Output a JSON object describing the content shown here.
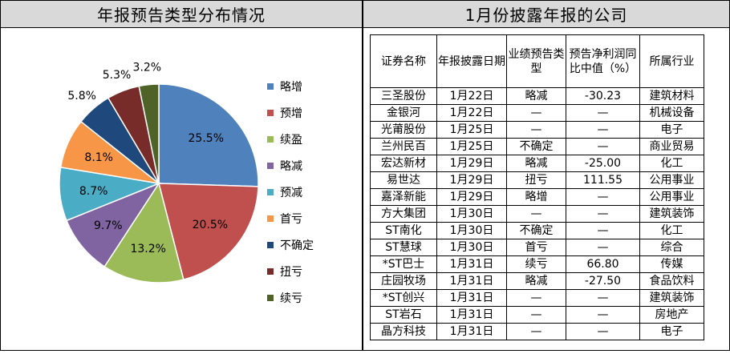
{
  "left_panel": {
    "title": "年报预告类型分布情况"
  },
  "right_panel": {
    "title": "1月份披露年报的公司"
  },
  "chart_data": {
    "type": "pie",
    "title": "年报预告类型分布情况",
    "slices": [
      {
        "label": "略增",
        "value": 25.5,
        "display": "25.5%",
        "color": "#4f81bd"
      },
      {
        "label": "预增",
        "value": 20.5,
        "display": "20.5%",
        "color": "#c0504d"
      },
      {
        "label": "续盈",
        "value": 13.2,
        "display": "13.2%",
        "color": "#9bbb59"
      },
      {
        "label": "略减",
        "value": 9.7,
        "display": "9.7%",
        "color": "#8064a2"
      },
      {
        "label": "预减",
        "value": 8.7,
        "display": "8.7%",
        "color": "#4bacc6"
      },
      {
        "label": "首亏",
        "value": 8.1,
        "display": "8.1%",
        "color": "#f79646"
      },
      {
        "label": "不确定",
        "value": 5.8,
        "display": "5.8%",
        "color": "#1f497d"
      },
      {
        "label": "扭亏",
        "value": 5.3,
        "display": "5.3%",
        "color": "#772c2a"
      },
      {
        "label": "续亏",
        "value": 3.2,
        "display": "3.2%",
        "color": "#4f6228"
      }
    ],
    "legend_position": "right"
  },
  "table": {
    "headers": [
      "证券名称",
      "年报披露日期",
      "业绩预告类型",
      "预告净利润同比中值（%）",
      "所属行业"
    ],
    "rows": [
      [
        "三圣股份",
        "1月22日",
        "略减",
        "-30.23",
        "建筑材料"
      ],
      [
        "金银河",
        "1月22日",
        "—",
        "—",
        "机械设备"
      ],
      [
        "光莆股份",
        "1月25日",
        "—",
        "—",
        "电子"
      ],
      [
        "兰州民百",
        "1月25日",
        "不确定",
        "—",
        "商业贸易"
      ],
      [
        "宏达新材",
        "1月29日",
        "略减",
        "-25.00",
        "化工"
      ],
      [
        "易世达",
        "1月29日",
        "扭亏",
        "111.55",
        "公用事业"
      ],
      [
        "嘉泽新能",
        "1月29日",
        "略增",
        "—",
        "公用事业"
      ],
      [
        "方大集团",
        "1月30日",
        "—",
        "—",
        "建筑装饰"
      ],
      [
        "ST南化",
        "1月30日",
        "不确定",
        "—",
        "化工"
      ],
      [
        "ST慧球",
        "1月30日",
        "首亏",
        "—",
        "综合"
      ],
      [
        "*ST巴士",
        "1月31日",
        "续亏",
        "66.80",
        "传媒"
      ],
      [
        "庄园牧场",
        "1月31日",
        "略减",
        "-27.50",
        "食品饮料"
      ],
      [
        "*ST创兴",
        "1月31日",
        "—",
        "—",
        "建筑装饰"
      ],
      [
        "ST岩石",
        "1月31日",
        "—",
        "—",
        "房地产"
      ],
      [
        "晶方科技",
        "1月31日",
        "—",
        "—",
        "电子"
      ]
    ]
  }
}
